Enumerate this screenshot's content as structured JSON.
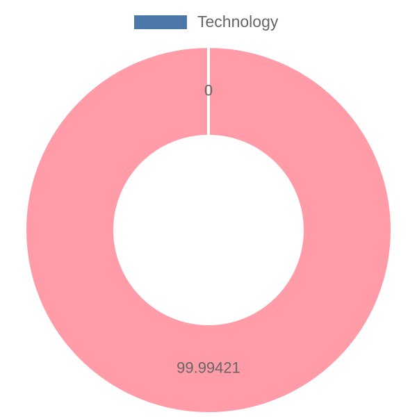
{
  "chart_data": {
    "type": "doughnut",
    "categories": [
      "Technology",
      null
    ],
    "values": [
      0,
      99.99421
    ],
    "colors": [
      "#4b77a9",
      "#ff9ca8"
    ]
  }
}
